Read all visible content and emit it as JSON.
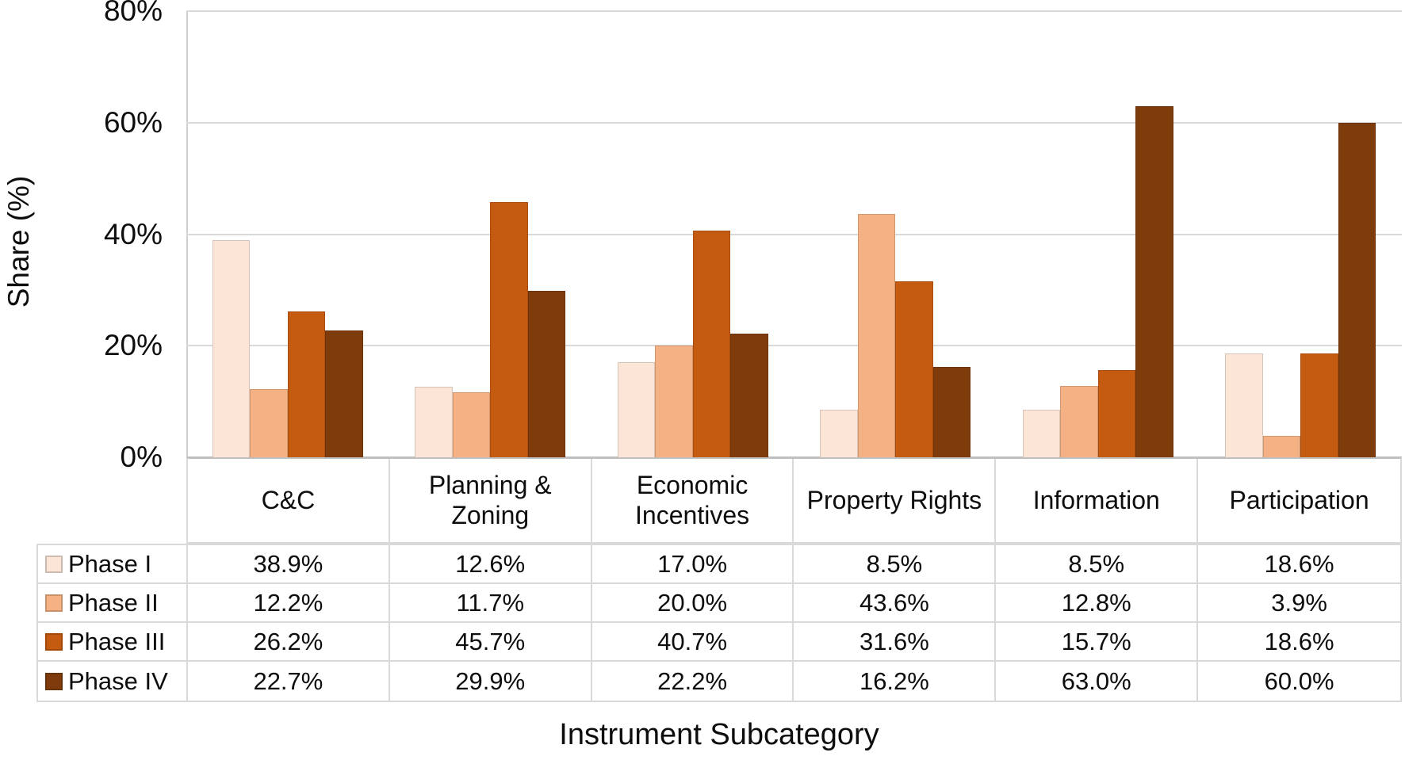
{
  "chart_data": {
    "type": "bar",
    "title": "",
    "xlabel": "Instrument Subcategory",
    "ylabel": "Share (%)",
    "ylim": [
      0,
      80
    ],
    "ytick_labels": [
      "0%",
      "20%",
      "40%",
      "60%",
      "80%"
    ],
    "grid": true,
    "legend_position": "table-left",
    "categories": [
      "C&C",
      "Planning & Zoning",
      "Economic Incentives",
      "Property Rights",
      "Information",
      "Participation"
    ],
    "series": [
      {
        "name": "Phase I",
        "color": "#fbe5d6",
        "values": [
          38.9,
          12.6,
          17.0,
          8.5,
          8.5,
          18.6
        ],
        "labels": [
          "38.9%",
          "12.6%",
          "17.0%",
          "8.5%",
          "8.5%",
          "18.6%"
        ]
      },
      {
        "name": "Phase II",
        "color": "#f4b183",
        "values": [
          12.2,
          11.7,
          20.0,
          43.6,
          12.8,
          3.9
        ],
        "labels": [
          "12.2%",
          "11.7%",
          "20.0%",
          "43.6%",
          "12.8%",
          "3.9%"
        ]
      },
      {
        "name": "Phase III",
        "color": "#c55a11",
        "values": [
          26.2,
          45.7,
          40.7,
          31.6,
          15.7,
          18.6
        ],
        "labels": [
          "26.2%",
          "45.7%",
          "40.7%",
          "31.6%",
          "15.7%",
          "18.6%"
        ]
      },
      {
        "name": "Phase IV",
        "color": "#7e3c0d",
        "values": [
          22.7,
          29.9,
          22.2,
          16.2,
          63.0,
          60.0
        ],
        "labels": [
          "22.7%",
          "29.9%",
          "22.2%",
          "16.2%",
          "63.0%",
          "60.0%"
        ]
      }
    ]
  },
  "colors": {
    "gridline": "#d9d9d9",
    "axis_line": "#bfbfbf",
    "table_border": "#d9d9d9"
  }
}
